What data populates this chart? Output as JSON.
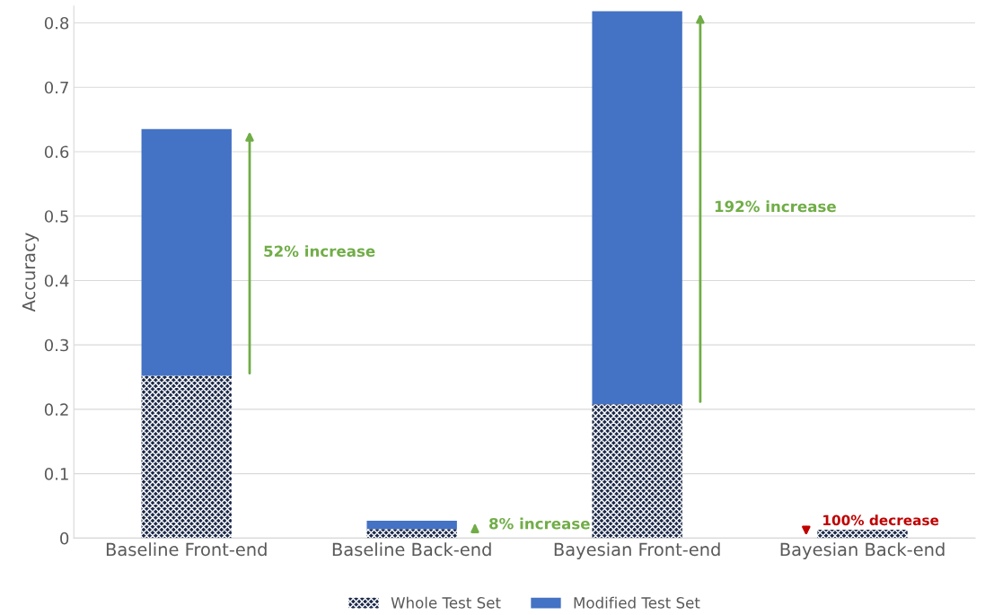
{
  "chart_data": {
    "type": "bar",
    "stacked": true,
    "ylabel": "Accuracy",
    "categories": [
      "Baseline Front-end",
      "Baseline Back-end",
      "Bayesian Front-end",
      "Bayesian Back-end"
    ],
    "series": [
      {
        "name": "Whole Test Set",
        "color": "#1c2a4a",
        "values": [
          0.252,
          0.014,
          0.208,
          0.013
        ]
      },
      {
        "name": "Modified Test Set",
        "color": "#4472c4",
        "values": [
          0.383,
          0.013,
          0.61,
          0
        ]
      }
    ],
    "ylim": [
      0,
      0.826
    ],
    "yticks": [
      0,
      0.1,
      0.2,
      0.3,
      0.4,
      0.5,
      0.6,
      0.7,
      0.8
    ],
    "grid": "y",
    "legend": "bottom",
    "annotations": [
      "52% increase",
      "8% increase",
      "192% increase",
      "100% decrease"
    ]
  }
}
